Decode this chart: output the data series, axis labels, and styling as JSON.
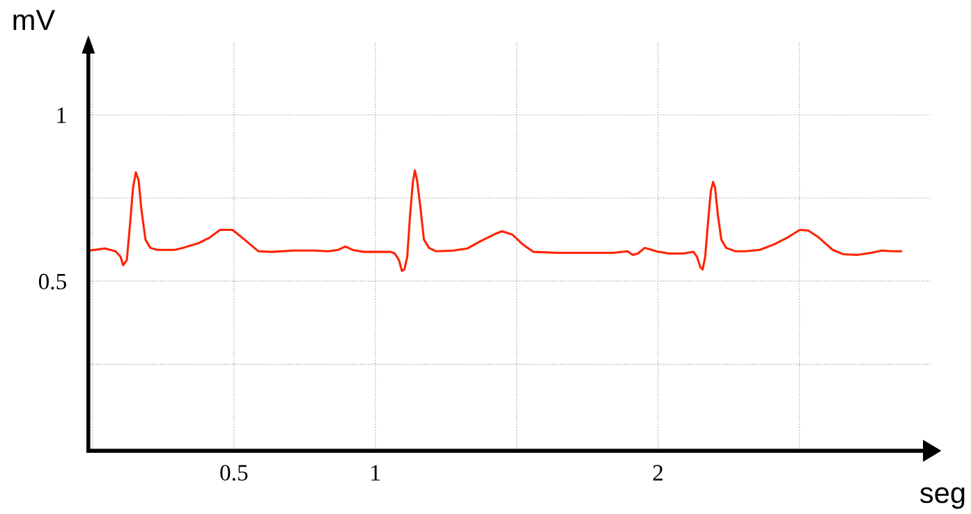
{
  "chart_data": {
    "type": "line",
    "xlabel": "seg",
    "ylabel": "mV",
    "xlim": [
      -0.015,
      2.963
    ],
    "ylim": [
      -0.01,
      1.22
    ],
    "xticks": [
      {
        "value": 0,
        "label": null
      },
      0.5,
      1,
      {
        "value": 1.5,
        "label": null
      },
      2,
      {
        "value": 2.5,
        "label": null
      }
    ],
    "yticks": [
      {
        "value": 0.25,
        "label": null
      },
      0.5,
      {
        "value": 0.75,
        "label": null
      },
      1
    ],
    "grid": true,
    "x": [
      -0.012,
      0.044,
      0.081,
      0.099,
      0.108,
      0.121,
      0.133,
      0.143,
      0.153,
      0.163,
      0.172,
      0.187,
      0.204,
      0.229,
      0.291,
      0.328,
      0.377,
      0.414,
      0.451,
      0.495,
      0.537,
      0.586,
      0.635,
      0.709,
      0.783,
      0.833,
      0.869,
      0.894,
      0.919,
      0.956,
      1.005,
      1.054,
      1.069,
      1.084,
      1.094,
      1.103,
      1.113,
      1.123,
      1.133,
      1.14,
      1.148,
      1.16,
      1.172,
      1.19,
      1.214,
      1.276,
      1.325,
      1.374,
      1.424,
      1.448,
      1.485,
      1.522,
      1.559,
      1.645,
      1.768,
      1.842,
      1.892,
      1.911,
      1.929,
      1.953,
      1.978,
      2.002,
      2.039,
      2.089,
      2.126,
      2.138,
      2.15,
      2.158,
      2.167,
      2.177,
      2.187,
      2.195,
      2.202,
      2.212,
      2.224,
      2.241,
      2.273,
      2.31,
      2.36,
      2.409,
      2.458,
      2.502,
      2.532,
      2.569,
      2.618,
      2.655,
      2.704,
      2.754,
      2.791,
      2.828,
      2.86
    ],
    "series": [
      {
        "color": "#ff2200",
        "values": [
          0.592,
          0.598,
          0.59,
          0.573,
          0.548,
          0.563,
          0.677,
          0.781,
          0.827,
          0.802,
          0.719,
          0.625,
          0.6,
          0.594,
          0.594,
          0.602,
          0.615,
          0.631,
          0.654,
          0.654,
          0.625,
          0.59,
          0.588,
          0.592,
          0.592,
          0.59,
          0.594,
          0.604,
          0.594,
          0.588,
          0.588,
          0.588,
          0.583,
          0.563,
          0.531,
          0.535,
          0.573,
          0.698,
          0.798,
          0.833,
          0.802,
          0.719,
          0.625,
          0.6,
          0.59,
          0.592,
          0.598,
          0.621,
          0.642,
          0.65,
          0.64,
          0.61,
          0.588,
          0.585,
          0.585,
          0.585,
          0.59,
          0.579,
          0.583,
          0.6,
          0.594,
          0.588,
          0.583,
          0.583,
          0.588,
          0.573,
          0.542,
          0.535,
          0.573,
          0.677,
          0.771,
          0.798,
          0.781,
          0.698,
          0.625,
          0.6,
          0.59,
          0.59,
          0.594,
          0.61,
          0.631,
          0.654,
          0.652,
          0.631,
          0.594,
          0.581,
          0.579,
          0.585,
          0.592,
          0.59,
          0.59
        ]
      }
    ]
  }
}
